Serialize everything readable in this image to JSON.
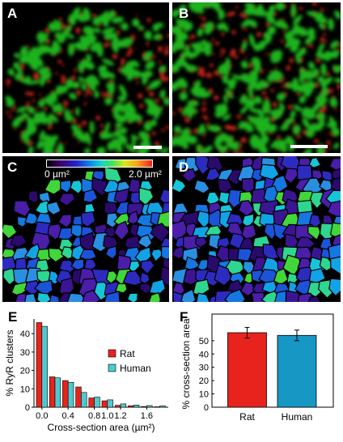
{
  "panels": {
    "a": {
      "label": "A"
    },
    "b": {
      "label": "B"
    },
    "c": {
      "label": "C"
    },
    "d": {
      "label": "D"
    },
    "e": {
      "label": "E"
    },
    "f": {
      "label": "F"
    }
  },
  "colorbar": {
    "min_label": "0 µm²",
    "max_label": "2.0 µm²"
  },
  "colors": {
    "rat": "#e8231d",
    "human": "#4fc9cf",
    "human_f": "#1697c4",
    "green": "#1fb31f",
    "red": "#d8261a"
  },
  "chart_data": [
    {
      "type": "bar",
      "panel": "E",
      "xlabel": "Cross-section area (µm²)",
      "ylabel": "% RyR clusters",
      "x": [
        0.0,
        0.2,
        0.4,
        0.6,
        0.8,
        1.0,
        1.2,
        1.4,
        1.6,
        1.8
      ],
      "x_ticks": [
        "0.0",
        "0.4",
        "0.8",
        "1.0",
        "1.2",
        "1.6"
      ],
      "y_ticks": [
        "0",
        "10",
        "20",
        "30",
        "40"
      ],
      "ylim": [
        0,
        48
      ],
      "legend_position": "center-right",
      "series": [
        {
          "name": "Rat",
          "values": [
            46,
            16.5,
            14.5,
            11,
            5,
            3.5,
            1,
            0.8,
            0.4,
            0.2
          ]
        },
        {
          "name": "Human",
          "values": [
            44,
            16,
            13.5,
            8,
            5.5,
            4,
            1.8,
            1.2,
            0.9,
            0.7
          ]
        }
      ]
    },
    {
      "type": "bar",
      "panel": "F",
      "ylabel": "% cross-section area",
      "categories": [
        "Rat",
        "Human"
      ],
      "values": [
        56,
        54
      ],
      "errors": [
        4,
        4
      ],
      "y_ticks": [
        "0",
        "10",
        "20",
        "30",
        "40",
        "50"
      ],
      "ylim": [
        0,
        70
      ]
    }
  ]
}
